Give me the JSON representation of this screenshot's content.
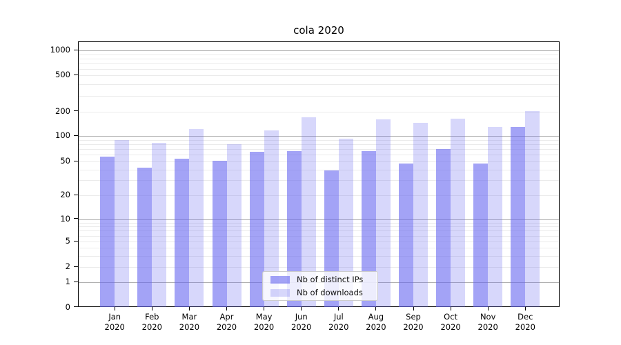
{
  "title": "cola 2020",
  "legend": {
    "items": [
      {
        "label": "Nb of distinct IPs"
      },
      {
        "label": "Nb of downloads"
      }
    ]
  },
  "chart_data": {
    "type": "bar",
    "title": "cola 2020",
    "categories": [
      "Jan 2020",
      "Feb 2020",
      "Mar 2020",
      "Apr 2020",
      "May 2020",
      "Jun 2020",
      "Jul 2020",
      "Aug 2020",
      "Sep 2020",
      "Oct 2020",
      "Nov 2020",
      "Dec 2020"
    ],
    "series": [
      {
        "name": "Nb of distinct IPs",
        "color": "rgba(102,102,240,0.60)",
        "color_hex_on_white": "#a3a3f1",
        "values": [
          57,
          42,
          54,
          51,
          65,
          66,
          39,
          66,
          47,
          70,
          47,
          128
        ]
      },
      {
        "name": "Nb of downloads",
        "color": "rgba(102,102,240,0.26)",
        "color_hex_on_white": "#d8d8f7",
        "values": [
          89,
          83,
          122,
          80,
          118,
          170,
          92,
          159,
          146,
          163,
          128,
          201
        ]
      }
    ],
    "yscale": "symlog",
    "ylim": [
      0,
      1400
    ],
    "yticks": [
      0,
      1,
      2,
      5,
      10,
      20,
      50,
      100,
      200,
      500,
      1000
    ],
    "ytick_labels": [
      "0",
      "1",
      "2",
      "5",
      "10",
      "20",
      "50",
      "100",
      "200",
      "500",
      "1000"
    ],
    "grid": true,
    "grid_major_color": "#b0b0b0",
    "grid_minor_color": "#ebebeb",
    "legend_position": "lower center"
  }
}
